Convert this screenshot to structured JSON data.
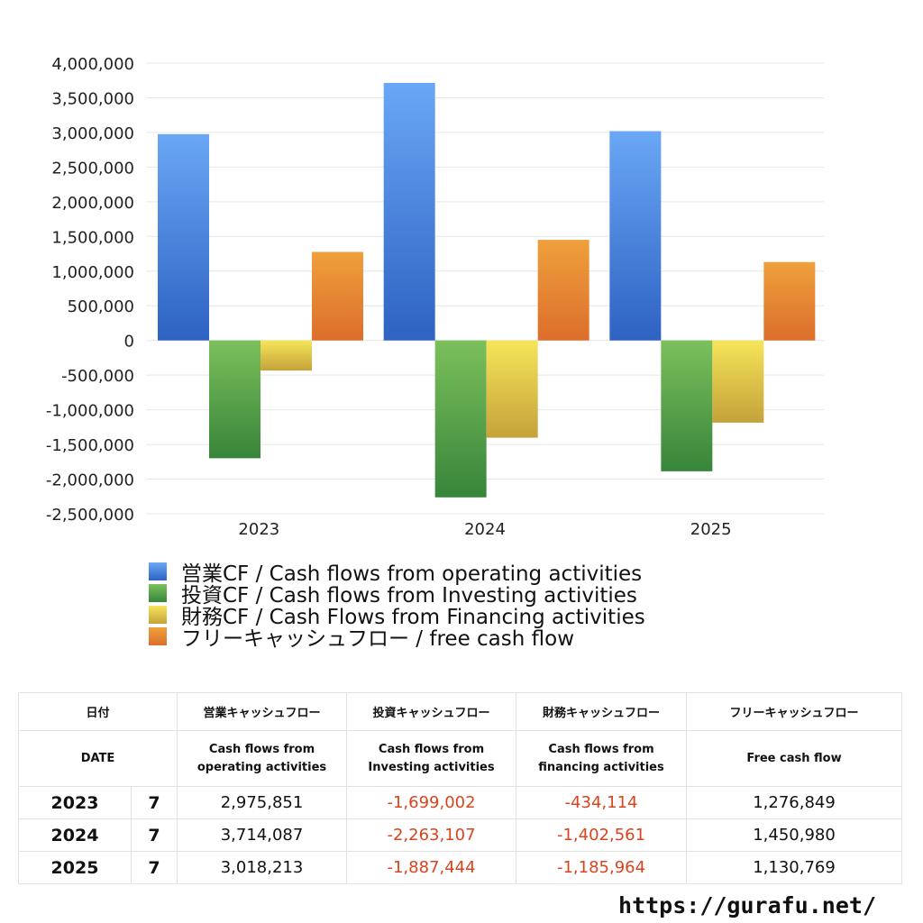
{
  "chart_data": {
    "type": "bar",
    "categories": [
      "2023",
      "2024",
      "2025"
    ],
    "series": [
      {
        "name": "営業CF / Cash flows from operating activities",
        "values": [
          2975851,
          3714087,
          3018213
        ]
      },
      {
        "name": "投資CF / Cash flows from Investing activities",
        "values": [
          -1699002,
          -2263107,
          -1887444
        ]
      },
      {
        "name": "財務CF / Cash Flows from Financing activities",
        "values": [
          -434114,
          -1402561,
          -1185964
        ]
      },
      {
        "name": "フリーキャッシュフロー / free cash flow",
        "values": [
          1276849,
          1450980,
          1130769
        ]
      }
    ],
    "ylim": [
      -2500000,
      4000000
    ],
    "yticks": [
      "4,000,000",
      "3,500,000",
      "3,000,000",
      "2,500,000",
      "2,000,000",
      "1,500,000",
      "1,000,000",
      "500,000",
      "0",
      "-500,000",
      "-1,000,000",
      "-1,500,000",
      "-2,000,000",
      "-2,500,000"
    ],
    "grid": true,
    "legend_position": "bottom"
  },
  "colors": {
    "operating": [
      "#6aa7f5",
      "#2e62c3"
    ],
    "investing": [
      "#7cc05c",
      "#37853a"
    ],
    "financing": [
      "#f6e55a",
      "#c5a23a"
    ],
    "free": [
      "#efa03c",
      "#dc6e2c"
    ],
    "negative_text": "#d9431e",
    "grid": "#e6e6e6"
  },
  "legend": [
    {
      "label": "営業CF / Cash flows from operating activities",
      "color_key": "operating"
    },
    {
      "label": "投資CF / Cash flows from Investing activities",
      "color_key": "investing"
    },
    {
      "label": "財務CF / Cash Flows from Financing activities",
      "color_key": "financing"
    },
    {
      "label": "フリーキャッシュフロー / free cash flow",
      "color_key": "free"
    }
  ],
  "table": {
    "header": {
      "date": "日付",
      "operating": "営業キャッシュフロー",
      "investing": "投資キャッシュフロー",
      "financing": "財務キャッシュフロー",
      "free": "フリーキャッシュフロー"
    },
    "subheader": {
      "date": "DATE",
      "operating_1": "Cash flows from",
      "operating_2": "operating activities",
      "investing_1": "Cash flows from",
      "investing_2": "Investing activities",
      "financing_1": "Cash flows from",
      "financing_2": "financing activities",
      "free": "Free cash flow"
    },
    "rows": [
      {
        "year": "2023",
        "month": "7",
        "operating": "2,975,851",
        "investing": "-1,699,002",
        "financing": "-434,114",
        "free": "1,276,849"
      },
      {
        "year": "2024",
        "month": "7",
        "operating": "3,714,087",
        "investing": "-2,263,107",
        "financing": "-1,402,561",
        "free": "1,450,980"
      },
      {
        "year": "2025",
        "month": "7",
        "operating": "3,018,213",
        "investing": "-1,887,444",
        "financing": "-1,185,964",
        "free": "1,130,769"
      }
    ]
  },
  "footer_url": "https://gurafu.net/"
}
